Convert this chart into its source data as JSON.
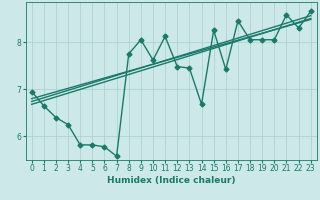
{
  "xlabel": "Humidex (Indice chaleur)",
  "ylabel": "",
  "bg_color": "#cce8e8",
  "line_color": "#1a7a6a",
  "marker": "D",
  "markersize": 2.5,
  "linewidth": 1.0,
  "xlim": [
    -0.5,
    23.5
  ],
  "ylim": [
    5.5,
    8.85
  ],
  "yticks": [
    6,
    7,
    8
  ],
  "xticks": [
    0,
    1,
    2,
    3,
    4,
    5,
    6,
    7,
    8,
    9,
    10,
    11,
    12,
    13,
    14,
    15,
    16,
    17,
    18,
    19,
    20,
    21,
    22,
    23
  ],
  "main_series": [
    [
      0,
      6.95
    ],
    [
      1,
      6.65
    ],
    [
      2,
      6.4
    ],
    [
      3,
      6.25
    ],
    [
      4,
      5.82
    ],
    [
      5,
      5.82
    ],
    [
      6,
      5.78
    ],
    [
      7,
      5.58
    ],
    [
      8,
      7.75
    ],
    [
      9,
      8.05
    ],
    [
      10,
      7.62
    ],
    [
      11,
      8.12
    ],
    [
      12,
      7.48
    ],
    [
      13,
      7.45
    ],
    [
      14,
      6.68
    ],
    [
      15,
      8.25
    ],
    [
      16,
      7.42
    ],
    [
      17,
      8.45
    ],
    [
      18,
      8.05
    ],
    [
      19,
      8.05
    ],
    [
      20,
      8.05
    ],
    [
      21,
      8.58
    ],
    [
      22,
      8.3
    ],
    [
      23,
      8.65
    ]
  ],
  "trend_series": [
    [
      [
        0,
        6.68
      ],
      [
        23,
        8.5
      ]
    ],
    [
      [
        0,
        6.74
      ],
      [
        23,
        8.56
      ]
    ],
    [
      [
        0,
        6.8
      ],
      [
        23,
        8.48
      ]
    ]
  ],
  "grid_color": "#aacece",
  "tick_labelsize": 5.5,
  "xlabel_fontsize": 6.5
}
